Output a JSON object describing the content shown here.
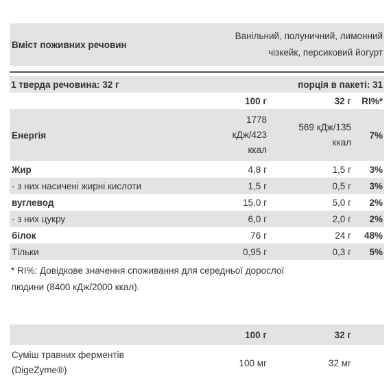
{
  "header": {
    "title": "Вміст поживних речовин",
    "flavors_line1": "Ванільний, полуничний, лимонний",
    "flavors_line2": "чізкейк, персиковий йогурт"
  },
  "serving": {
    "size": "1 тверда речовина: 32 г",
    "per_pack": "порція в пакеті: 31"
  },
  "columns": {
    "per100": "100 г",
    "perServing": "32 г",
    "ri": "RI%*"
  },
  "rows": [
    {
      "name": "Енергія",
      "v100": "1778 кДж/423 ккал",
      "v100_l1": "1778",
      "v100_l2": "кДж/423",
      "v100_l3": "ккал",
      "vServ_l1": "569 кДж/135",
      "vServ_l2": "ккал",
      "ri": "7%"
    },
    {
      "name": "Жир",
      "v100": "4,8 г",
      "vServ": "1,5 г",
      "ri": "3%"
    },
    {
      "name": "- з них насичені жирні кислоти",
      "v100": "1,5 г",
      "vServ": "0,5 г",
      "ri": "3%"
    },
    {
      "name": "вуглевод",
      "v100": "15,0 г",
      "vServ": "5,0 г",
      "ri": "2%"
    },
    {
      "name": "- з них цукру",
      "v100": "6,0 г",
      "vServ": "2,0 г",
      "ri": "2%"
    },
    {
      "name": "білок",
      "v100": "76 г",
      "vServ": "24 г",
      "ri": "48%"
    },
    {
      "name": "Тільки",
      "v100": "0,95 г",
      "vServ": "0,3 г",
      "ri": "5%"
    }
  ],
  "footnote": {
    "line1": "* RI%: Довідкове значення споживання для середньої дорослої",
    "line2": "людини (8400 кДж/2000 ккал)."
  },
  "enzymes": {
    "col_per100": "100 г",
    "col_perServing": "32 г",
    "name_line1": "Суміш травних ферментів",
    "name_line2": "(DigeZyme®)",
    "v100": "100 мг",
    "vServ": "32 мг"
  }
}
